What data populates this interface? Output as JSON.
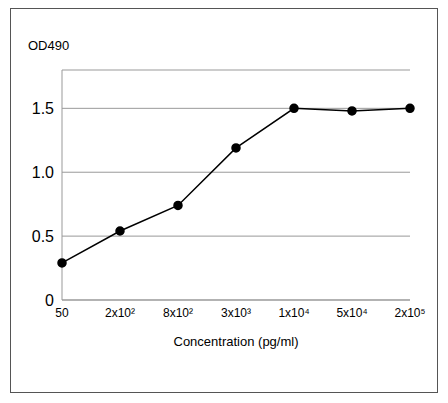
{
  "chart_data": {
    "type": "line",
    "y_label": "OD490",
    "x_label": "Concentration (pg/ml)",
    "categories": [
      "50",
      "2x10²",
      "8x10²",
      "3x10³",
      "1x10⁴",
      "5x10⁴",
      "2x10⁵"
    ],
    "values": [
      0.29,
      0.54,
      0.74,
      1.19,
      1.5,
      1.48,
      1.5
    ],
    "ylim": [
      0,
      1.8
    ],
    "yticks": [
      0,
      0.5,
      {
        "value": 1,
        "label": "1.0"
      },
      {
        "value": 1.5,
        "label": "1.5"
      }
    ],
    "grid": true,
    "color": "#000000",
    "marker": "circle"
  }
}
